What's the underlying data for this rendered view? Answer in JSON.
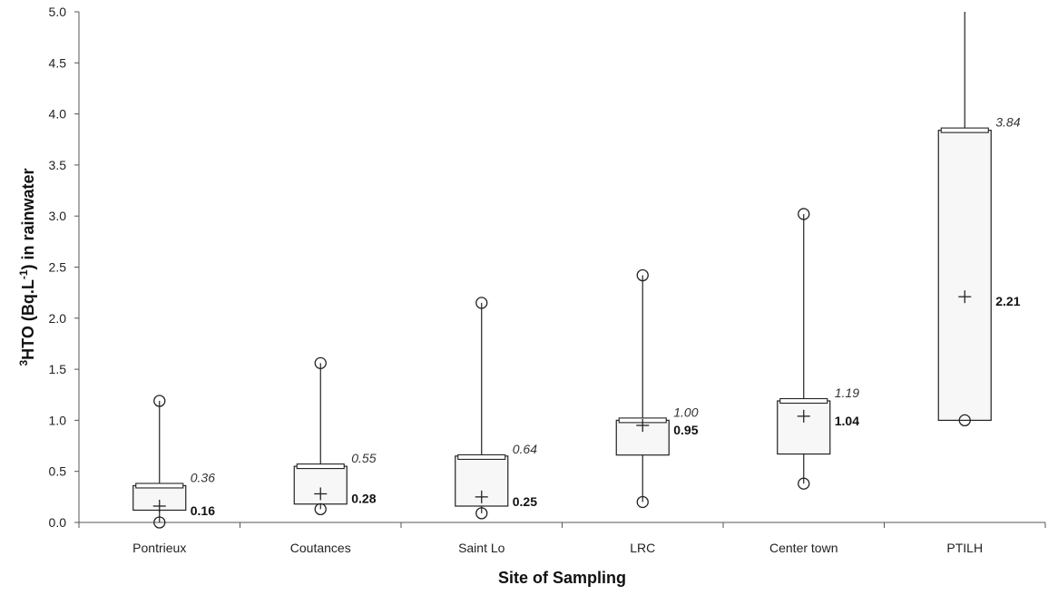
{
  "chart_data": {
    "type": "box",
    "title": "",
    "xlabel": "Site of Sampling",
    "ylabel_parts": {
      "sup1": "3",
      "main": "HTO (Bq.L",
      "sup2": "-1",
      "tail": ") in rainwater"
    },
    "ylim": [
      0,
      5
    ],
    "yticks": [
      "0.0",
      "0.5",
      "1.0",
      "1.5",
      "2.0",
      "2.5",
      "3.0",
      "3.5",
      "4.0",
      "4.5",
      "5.0"
    ],
    "categories": [
      "Pontrieux",
      "Coutances",
      "Saint Lo",
      "LRC",
      "Center town",
      "PTILH"
    ],
    "series": [
      {
        "q1": 0.12,
        "median": 0.36,
        "q3": 0.36,
        "mean": 0.16,
        "whisker_low": 0.0,
        "whisker_high": 1.19,
        "outliers": [
          0.0,
          1.19
        ],
        "median_label": "0.36",
        "mean_label": "0.16"
      },
      {
        "q1": 0.18,
        "median": 0.55,
        "q3": 0.55,
        "mean": 0.28,
        "whisker_low": 0.13,
        "whisker_high": 1.56,
        "outliers": [
          0.13,
          1.56
        ],
        "median_label": "0.55",
        "mean_label": "0.28"
      },
      {
        "q1": 0.16,
        "median": 0.64,
        "q3": 0.65,
        "mean": 0.25,
        "whisker_low": 0.09,
        "whisker_high": 2.15,
        "outliers": [
          0.09,
          2.15
        ],
        "median_label": "0.64",
        "mean_label": "0.25"
      },
      {
        "q1": 0.66,
        "median": 1.0,
        "q3": 1.0,
        "mean": 0.95,
        "whisker_low": 0.2,
        "whisker_high": 2.42,
        "outliers": [
          0.2,
          2.42
        ],
        "median_label": "1.00",
        "mean_label": "0.95"
      },
      {
        "q1": 0.67,
        "median": 1.19,
        "q3": 1.19,
        "mean": 1.04,
        "whisker_low": 0.38,
        "whisker_high": 3.02,
        "outliers": [
          0.38,
          3.02
        ],
        "median_label": "1.19",
        "mean_label": "1.04"
      },
      {
        "q1": 1.0,
        "median": 3.84,
        "q3": 3.84,
        "mean": 2.21,
        "whisker_low": 1.0,
        "whisker_high": 5.0,
        "outliers": [
          1.0
        ],
        "median_label": "3.84",
        "mean_label": "2.21"
      }
    ],
    "grid": false,
    "legend": "none"
  }
}
